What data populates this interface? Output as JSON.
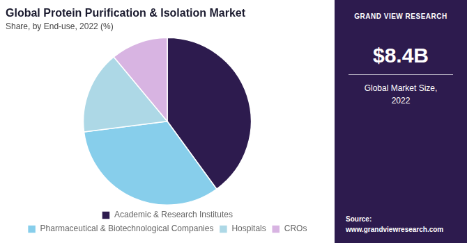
{
  "chart_data": {
    "type": "pie",
    "title": "Global Protein Purification & Isolation Market",
    "subtitle": "Share, by End-use, 2022 (%)",
    "categories": [
      "Academic & Research Institutes",
      "Pharmaceutical & Biotechnological Companies",
      "Hospitals",
      "CROs"
    ],
    "values": [
      40,
      33,
      16,
      11
    ],
    "colors": [
      "#2d1b4e",
      "#87ceeb",
      "#add8e6",
      "#d8b4e2"
    ],
    "legend": "bottom",
    "annotations": [
      "GRAND VIEW RESEARCH",
      "$8.4B",
      "Global Market Size,\n2022",
      "Source:\nwww.grandviewresearch.com"
    ]
  }
}
